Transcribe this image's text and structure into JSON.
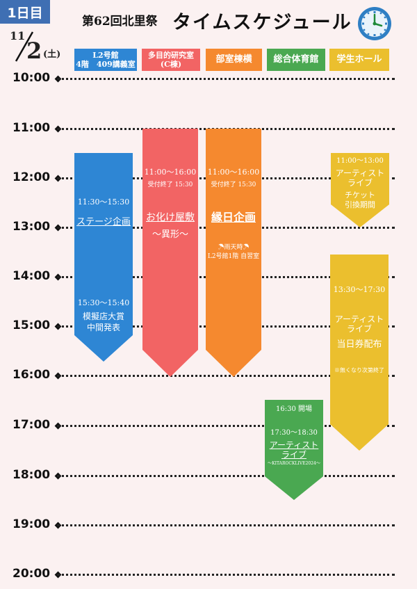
{
  "header": {
    "day_label": "1日目",
    "subtitle": "第62回北里祭",
    "title": "タイムスケジュール",
    "date_month": "11",
    "date_day": "2",
    "date_weekday": "(土)"
  },
  "venues": [
    {
      "line1": "L2号館",
      "line2": "4階　409講義室",
      "color": "#2e86d4"
    },
    {
      "line1": "多目的研究室",
      "line2": "(C棟)",
      "color": "#f26464"
    },
    {
      "line1": "部室棟横",
      "line2": "",
      "color": "#f5892f"
    },
    {
      "line1": "総合体育館",
      "line2": "",
      "color": "#4aa851"
    },
    {
      "line1": "学生ホール",
      "line2": "",
      "color": "#ebbf2e"
    }
  ],
  "times": [
    "10:00",
    "11:00",
    "12:00",
    "13:00",
    "14:00",
    "15:00",
    "16:00",
    "17:00",
    "18:00",
    "19:00",
    "20:00"
  ],
  "events": {
    "stage": {
      "time1": "11:30〜15:30",
      "name": "ステージ企画",
      "time2": "15:30〜15:40",
      "sub1": "模擬店大賞",
      "sub2": "中間発表",
      "color": "#2e86d4"
    },
    "haunted": {
      "time": "11:00〜16:00",
      "reception": "受付終了 15:30",
      "name": "お化け屋敷",
      "sub": "〜異形〜",
      "color": "#f26464"
    },
    "festival": {
      "time": "11:00〜16:00",
      "reception": "受付終了 15:30",
      "name": "縁日企画",
      "rain": "雨天時",
      "rain_loc": "L2号館1階 自習室",
      "color": "#f5892f"
    },
    "ticket": {
      "time": "11:00〜13:00",
      "name1": "アーティスト",
      "name2": "ライブ",
      "sub1": "チケット",
      "sub2": "引換期間",
      "color": "#ebbf2e"
    },
    "sameday": {
      "time": "13:30〜17:30",
      "name1": "アーティスト",
      "name2": "ライブ",
      "sub": "当日券配布",
      "note": "※無くなり次第終了",
      "color": "#ebbf2e"
    },
    "live": {
      "open": "16:30 開場",
      "time": "17:30〜18:30",
      "name1": "アーティスト",
      "name2": "ライブ",
      "sub": "〜KITAROCKLIVE2024〜",
      "color": "#4aa851"
    }
  }
}
